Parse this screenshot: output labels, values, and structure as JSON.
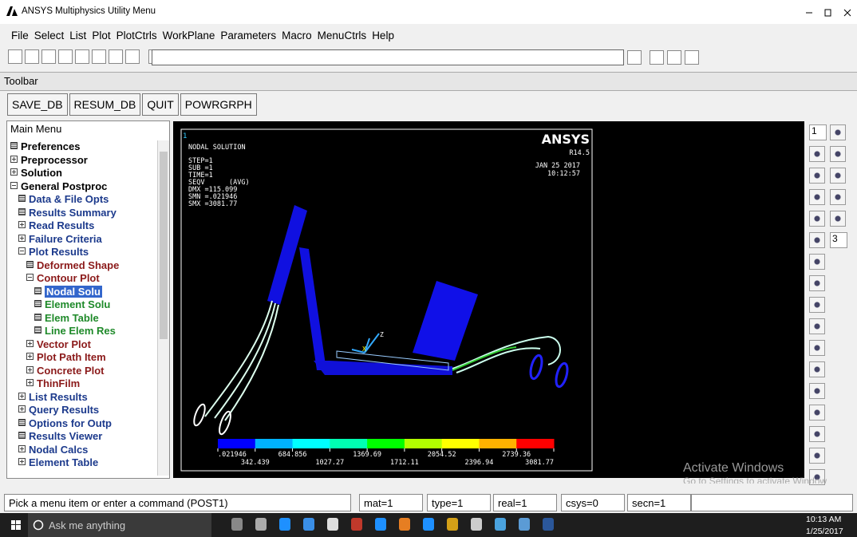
{
  "window": {
    "title": "ANSYS Multiphysics Utility Menu"
  },
  "menu": [
    "File",
    "Select",
    "List",
    "Plot",
    "PlotCtrls",
    "WorkPlane",
    "Parameters",
    "Macro",
    "MenuCtrls",
    "Help"
  ],
  "toolbar": {
    "label": "Toolbar",
    "buttons": [
      "SAVE_DB",
      "RESUM_DB",
      "QUIT",
      "POWRGRPH"
    ]
  },
  "main_menu": {
    "title": "Main Menu",
    "items": [
      {
        "label": "Preferences",
        "level": 0,
        "kind": "leaf",
        "color": "#000000"
      },
      {
        "label": "Preprocessor",
        "level": 0,
        "kind": "collapsed",
        "color": "#000000"
      },
      {
        "label": "Solution",
        "level": 0,
        "kind": "collapsed",
        "color": "#000000"
      },
      {
        "label": "General Postproc",
        "level": 0,
        "kind": "expanded",
        "color": "#000000"
      },
      {
        "label": "Data & File Opts",
        "level": 1,
        "kind": "leaf",
        "color": "#1c3a8c"
      },
      {
        "label": "Results Summary",
        "level": 1,
        "kind": "leaf",
        "color": "#1c3a8c"
      },
      {
        "label": "Read Results",
        "level": 1,
        "kind": "collapsed",
        "color": "#1c3a8c"
      },
      {
        "label": "Failure Criteria",
        "level": 1,
        "kind": "collapsed",
        "color": "#1c3a8c"
      },
      {
        "label": "Plot Results",
        "level": 1,
        "kind": "expanded",
        "color": "#1c3a8c"
      },
      {
        "label": "Deformed Shape",
        "level": 2,
        "kind": "leaf",
        "color": "#8b1a1a"
      },
      {
        "label": "Contour Plot",
        "level": 2,
        "kind": "expanded",
        "color": "#8b1a1a"
      },
      {
        "label": "Nodal Solu",
        "level": 3,
        "kind": "leaf",
        "color": "#ffffff",
        "selected": true
      },
      {
        "label": "Element Solu",
        "level": 3,
        "kind": "leaf",
        "color": "#1f8a2a"
      },
      {
        "label": "Elem Table",
        "level": 3,
        "kind": "leaf",
        "color": "#1f8a2a"
      },
      {
        "label": "Line Elem Res",
        "level": 3,
        "kind": "leaf",
        "color": "#1f8a2a"
      },
      {
        "label": "Vector Plot",
        "level": 2,
        "kind": "collapsed",
        "color": "#8b1a1a"
      },
      {
        "label": "Plot Path Item",
        "level": 2,
        "kind": "collapsed",
        "color": "#8b1a1a"
      },
      {
        "label": "Concrete Plot",
        "level": 2,
        "kind": "collapsed",
        "color": "#8b1a1a"
      },
      {
        "label": "ThinFilm",
        "level": 2,
        "kind": "collapsed",
        "color": "#8b1a1a"
      },
      {
        "label": "List Results",
        "level": 1,
        "kind": "collapsed",
        "color": "#1c3a8c"
      },
      {
        "label": "Query Results",
        "level": 1,
        "kind": "collapsed",
        "color": "#1c3a8c"
      },
      {
        "label": "Options for Outp",
        "level": 1,
        "kind": "leaf",
        "color": "#1c3a8c"
      },
      {
        "label": "Results Viewer",
        "level": 1,
        "kind": "leaf",
        "color": "#1c3a8c"
      },
      {
        "label": "Nodal Calcs",
        "level": 1,
        "kind": "collapsed",
        "color": "#1c3a8c"
      },
      {
        "label": "Element Table",
        "level": 1,
        "kind": "collapsed",
        "color": "#1c3a8c"
      }
    ]
  },
  "viewport": {
    "window_number": "1",
    "heading": "NODAL SOLUTION",
    "info": [
      "STEP=1",
      "SUB =1",
      "TIME=1",
      "SEQV",
      "DMX =115.099",
      "SMN =.021946",
      "SMX =3081.77"
    ],
    "info_avg": "(AVG)",
    "brand": "ANSYS",
    "version": "R14.5",
    "date": "JAN 25 2017",
    "time": "10:12:57",
    "triad": [
      "Z",
      "X"
    ],
    "legend": {
      "colors": [
        "#0000ff",
        "#00b2ff",
        "#00ffff",
        "#00ffb2",
        "#00ff00",
        "#b2ff00",
        "#ffff00",
        "#ffb200",
        "#ff0000"
      ],
      "labels": [
        ".021946",
        "342.439",
        "684.856",
        "1027.27",
        "1369.69",
        "1712.11",
        "2054.52",
        "2396.94",
        "2739.36",
        "3081.77"
      ]
    }
  },
  "right_toolbar": {
    "window_select": "1",
    "view_select": "3"
  },
  "watermark": {
    "title": "Activate Windows",
    "subtitle": "Go to Settings to activate Windows."
  },
  "status": [
    "Pick a menu item or enter a command (POST1)",
    "mat=1",
    "type=1",
    "real=1",
    "csys=0",
    "secn=1"
  ],
  "taskbar": {
    "search": "Ask me anything",
    "time": "10:13 AM",
    "date": "1/25/2017"
  }
}
